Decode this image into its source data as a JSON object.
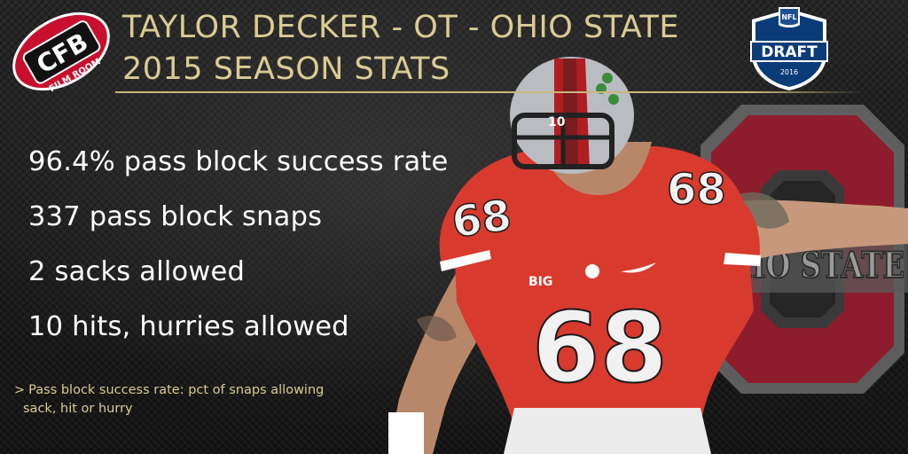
{
  "header": {
    "title_line1": "TAYLOR DECKER - OT - OHIO STATE",
    "title_line2": "2015 SEASON STATS"
  },
  "brand_logo": {
    "icon": "football-logo",
    "name": "CFB",
    "sub": "FILM ROOM"
  },
  "draft_badge": {
    "icon": "nfl-draft-shield",
    "league": "NFL",
    "label": "DRAFT",
    "year": "2016"
  },
  "team_logo": {
    "icon": "ohio-state-block-o",
    "text": "OHIO STATE"
  },
  "player_photo": {
    "icon": "football-player",
    "jersey_number": "68",
    "helmet_number": "10",
    "conference_patch": "BIG",
    "colors": {
      "jersey": "#d83a2e",
      "helmet": "#b9bcc0",
      "stripe": "#b01e23"
    }
  },
  "stats": [
    "96.4% pass block success rate",
    "337 pass block snaps",
    "2 sacks allowed",
    "10 hits, hurries allowed"
  ],
  "footnote": {
    "marker": ">",
    "line1": "Pass block success rate: pct of snaps allowing",
    "line2": "sack, hit or hurry"
  },
  "colors": {
    "accent_gold": "#d9cb93",
    "brand_red": "#c8102e",
    "osu_scarlet": "#8d1d2c",
    "osu_gray": "#8a8a8a",
    "nfl_blue": "#0a3c78"
  }
}
